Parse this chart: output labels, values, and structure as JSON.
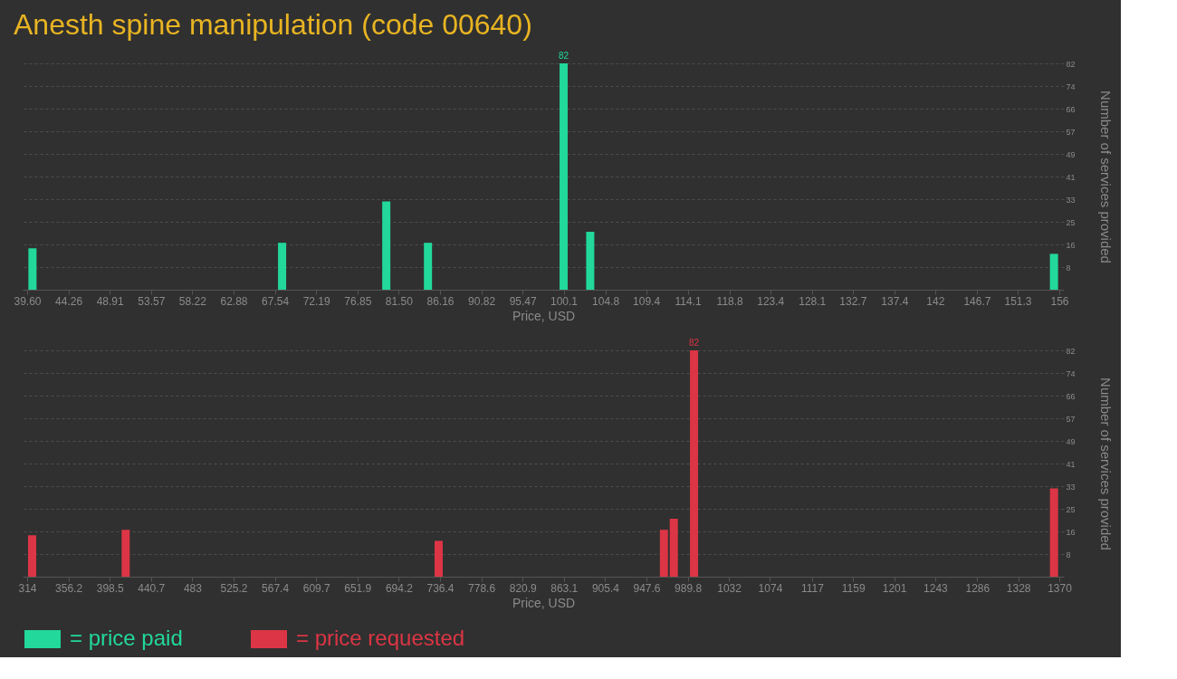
{
  "chart_data": [
    {
      "type": "bar",
      "title": "Anesth spine manipulation (code 00640)",
      "xlabel": "Price, USD",
      "ylabel": "Number of services provided",
      "series": [
        {
          "name": "= price paid",
          "color": "#22d89a",
          "x": [
            40.2,
            68.35,
            80.1,
            84.8,
            100.1,
            103.1,
            155.4
          ],
          "values": [
            15,
            17,
            32,
            17,
            82,
            21,
            13
          ],
          "value_labels": [
            null,
            null,
            null,
            null,
            "82",
            null,
            null
          ]
        }
      ],
      "xlim": [
        39.6,
        156
      ],
      "xticks": [
        {
          "value": 39.6,
          "label": "39.60"
        },
        44.26,
        48.91,
        53.57,
        58.22,
        62.88,
        67.54,
        72.19,
        76.85,
        {
          "value": 81.5,
          "label": "81.50"
        },
        86.16,
        90.82,
        95.47,
        100.1,
        104.8,
        109.4,
        114.1,
        118.8,
        123.4,
        128.1,
        132.7,
        137.4,
        142,
        146.7,
        151.3,
        156
      ],
      "ylim": [
        0,
        82
      ],
      "yticks": [
        {
          "value": 8.2,
          "label": "8"
        },
        {
          "value": 16.4,
          "label": "16"
        },
        {
          "value": 24.6,
          "label": "25"
        },
        {
          "value": 32.8,
          "label": "33"
        },
        {
          "value": 41,
          "label": "41"
        },
        {
          "value": 49.2,
          "label": "49"
        },
        {
          "value": 57.4,
          "label": "57"
        },
        {
          "value": 65.6,
          "label": "66"
        },
        {
          "value": 73.8,
          "label": "74"
        },
        {
          "value": 82,
          "label": "82"
        }
      ],
      "grid": "y",
      "legend": "bottom"
    },
    {
      "type": "bar",
      "xlabel": "Price, USD",
      "ylabel": "Number of services provided",
      "series": [
        {
          "name": "= price requested",
          "color": "#dc3545",
          "x": [
            319.1,
            414.8,
            735.0,
            965.5,
            975.6,
            996.3,
            1364.6
          ],
          "values": [
            15,
            17,
            13,
            17,
            21,
            82,
            32
          ],
          "value_labels": [
            null,
            null,
            null,
            null,
            null,
            "82",
            null
          ]
        }
      ],
      "xlim": [
        314,
        1370
      ],
      "xticks": [
        314,
        356.2,
        398.5,
        440.7,
        483,
        525.2,
        567.4,
        609.7,
        651.9,
        694.2,
        736.4,
        778.6,
        820.9,
        863.1,
        905.4,
        947.6,
        989.8,
        1032,
        1074,
        1117,
        1159,
        1201,
        1243,
        1286,
        1328,
        1370
      ],
      "ylim": [
        0,
        82
      ],
      "yticks": [
        {
          "value": 8.2,
          "label": "8"
        },
        {
          "value": 16.4,
          "label": "16"
        },
        {
          "value": 24.6,
          "label": "25"
        },
        {
          "value": 32.8,
          "label": "33"
        },
        {
          "value": 41,
          "label": "41"
        },
        {
          "value": 49.2,
          "label": "49"
        },
        {
          "value": 57.4,
          "label": "57"
        },
        {
          "value": 65.6,
          "label": "66"
        },
        {
          "value": 73.8,
          "label": "74"
        },
        {
          "value": 82,
          "label": "82"
        }
      ],
      "grid": "y",
      "legend": "bottom"
    }
  ]
}
